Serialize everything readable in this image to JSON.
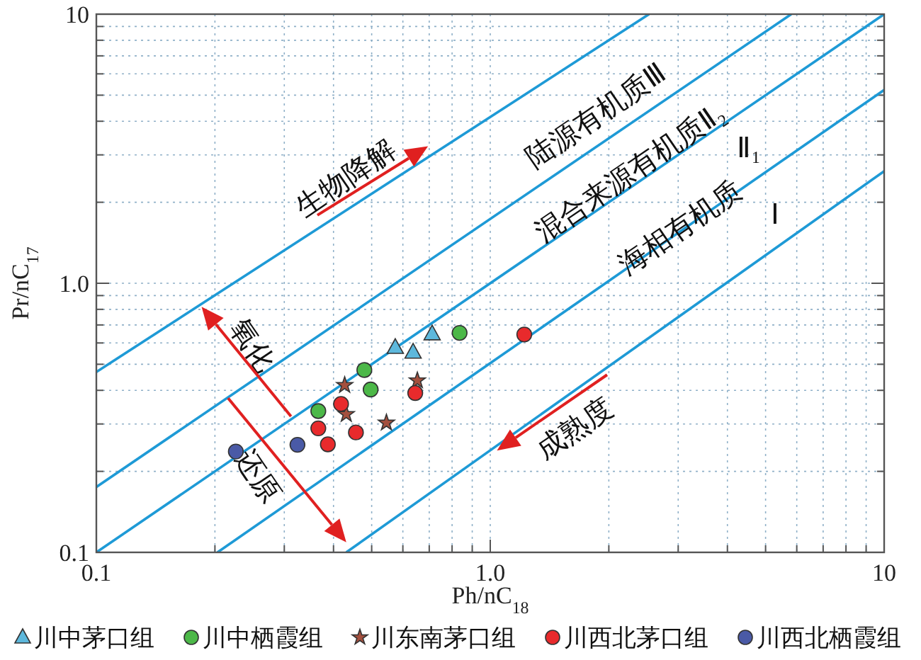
{
  "chart_data": {
    "type": "scatter",
    "xlabel": "Ph/nC$_{18}$",
    "ylabel": "Pr/nC$_{17}$",
    "log": "xy",
    "grid": true,
    "legend": "bottom",
    "xlim": [
      0.1,
      10
    ],
    "ylim": [
      0.1,
      10
    ],
    "xticks": [
      0.1,
      {
        "value": 0.2,
        "label": null
      },
      {
        "value": 0.3,
        "label": null
      },
      {
        "value": 0.4,
        "label": null
      },
      {
        "value": 0.5,
        "label": null
      },
      {
        "value": 0.6,
        "label": null
      },
      {
        "value": 0.7,
        "label": null
      },
      {
        "value": 0.8,
        "label": null
      },
      {
        "value": 0.9,
        "label": null
      },
      {
        "value": 1,
        "label": "1.0"
      },
      {
        "value": 2,
        "label": null
      },
      {
        "value": 3,
        "label": null
      },
      {
        "value": 4,
        "label": null
      },
      {
        "value": 5,
        "label": null
      },
      {
        "value": 6,
        "label": null
      },
      {
        "value": 7,
        "label": null
      },
      {
        "value": 8,
        "label": null
      },
      {
        "value": 9,
        "label": null
      },
      10
    ],
    "yticks": [
      0.1,
      {
        "value": 0.2,
        "label": null
      },
      {
        "value": 0.3,
        "label": null
      },
      {
        "value": 0.4,
        "label": null
      },
      {
        "value": 0.5,
        "label": null
      },
      {
        "value": 0.6,
        "label": null
      },
      {
        "value": 0.7,
        "label": null
      },
      {
        "value": 0.8,
        "label": null
      },
      {
        "value": 0.9,
        "label": null
      },
      {
        "value": 1,
        "label": "1.0"
      },
      {
        "value": 2,
        "label": null
      },
      {
        "value": 3,
        "label": null
      },
      {
        "value": 4,
        "label": null
      },
      {
        "value": 5,
        "label": null
      },
      {
        "value": 6,
        "label": null
      },
      {
        "value": 7,
        "label": null
      },
      {
        "value": 8,
        "label": null
      },
      {
        "value": 9,
        "label": null
      },
      10
    ],
    "series": [
      {
        "type": "line",
        "color": "#1e9ad6",
        "x": [
          0.1,
          2.53
        ],
        "values": [
          0.468,
          10
        ]
      },
      {
        "type": "line",
        "color": "#1e9ad6",
        "x": [
          0.1,
          5.81
        ],
        "values": [
          0.175,
          10
        ]
      },
      {
        "type": "line",
        "color": "#1e9ad6",
        "x": [
          0.1,
          10
        ],
        "values": [
          0.1,
          10
        ]
      },
      {
        "type": "line",
        "color": "#1e9ad6",
        "x": [
          0.203,
          10
        ],
        "values": [
          0.1,
          5.23
        ]
      },
      {
        "type": "line",
        "color": "#1e9ad6",
        "x": [
          0.431,
          10
        ],
        "values": [
          0.1,
          2.61
        ]
      },
      {
        "name": "川中茅口组",
        "marker": "triangle",
        "color": "#5db8dc",
        "x": [
          0.574,
          0.637,
          0.712
        ],
        "values": [
          0.577,
          0.554,
          0.648
        ]
      },
      {
        "name": "川中栖霞组",
        "marker": "circle",
        "color": "#4cb848",
        "x": [
          0.836,
          0.479,
          0.497,
          0.366
        ],
        "values": [
          0.654,
          0.476,
          0.403,
          0.335
        ]
      },
      {
        "name": "川东南茅口组",
        "marker": "star",
        "color": "#a4503e",
        "x": [
          0.427,
          0.431,
          0.545,
          0.653
        ],
        "values": [
          0.418,
          0.326,
          0.303,
          0.435
        ]
      },
      {
        "name": "川西北茅口组",
        "marker": "circle",
        "color": "#e82a2c",
        "x": [
          1.22,
          0.418,
          0.645,
          0.366,
          0.387,
          0.456
        ],
        "values": [
          0.645,
          0.356,
          0.391,
          0.289,
          0.252,
          0.279
        ]
      },
      {
        "name": "川西北栖霞组",
        "marker": "circle",
        "color": "#4a5aa6",
        "x": [
          0.226,
          0.324
        ],
        "values": [
          0.237,
          0.251
        ]
      }
    ],
    "annotations": [
      "生物降解",
      "陆源有机质Ⅲ",
      "混合来源有机质Ⅱ₂",
      "海相有机质",
      "Ⅱ₁",
      "Ⅰ",
      "氧化",
      "还原",
      "成熟度"
    ]
  }
}
